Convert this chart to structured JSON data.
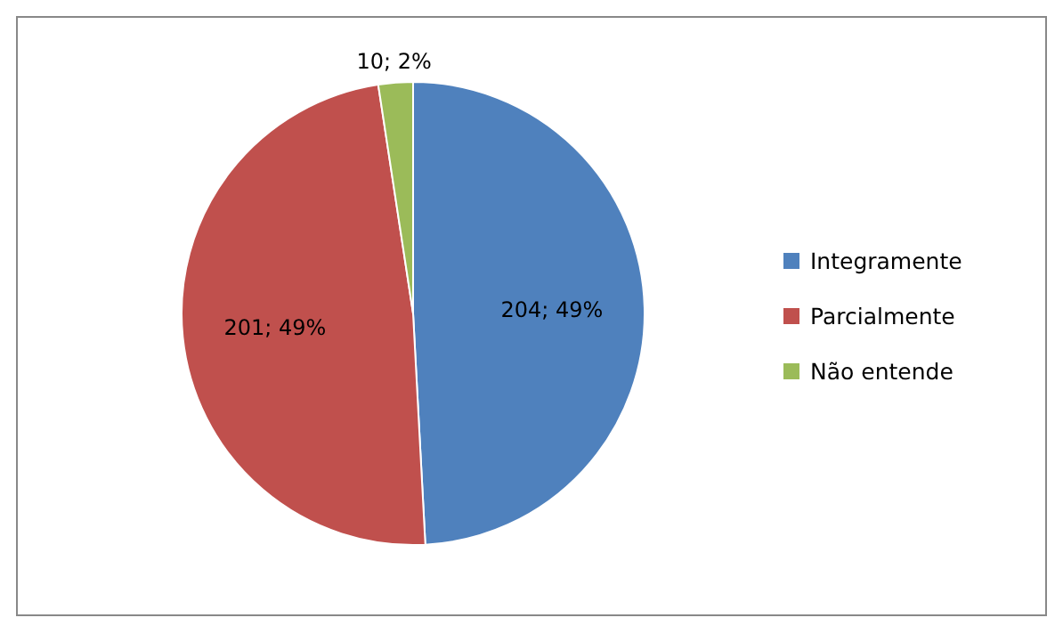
{
  "chart_data": {
    "type": "pie",
    "categories": [
      "Integramente",
      "Parcialmente",
      "Não entende"
    ],
    "values": [
      204,
      201,
      10
    ],
    "colors": [
      "#4f81bd",
      "#c0504d",
      "#9bbb59"
    ],
    "value_labels": [
      "204; 49%",
      "201; 49%",
      "10; 2%"
    ],
    "legend": "right"
  }
}
